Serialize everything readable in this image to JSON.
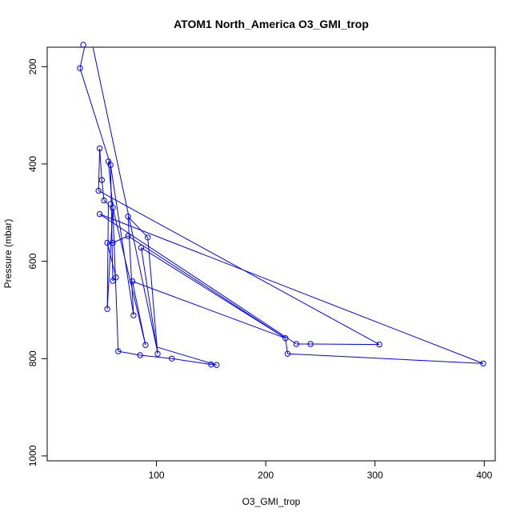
{
  "chart_data": {
    "type": "line",
    "title": "ATOM1 North_America O3_GMI_trop",
    "xlabel": "O3_GMI_trop",
    "ylabel": "Pressure (mbar)",
    "xlim": [
      0,
      410
    ],
    "ylim": [
      1010,
      160
    ],
    "y_reversed": true,
    "x_ticks": [
      100,
      200,
      300,
      400
    ],
    "y_ticks": [
      200,
      400,
      600,
      800,
      1000
    ],
    "grid": false,
    "legend": "none",
    "series_color": "#0000ff",
    "markers": "open-circle",
    "points": [
      {
        "x": 33,
        "y": 155
      },
      {
        "x": 30,
        "y": 203
      },
      {
        "x": 48,
        "y": 368
      },
      {
        "x": 56,
        "y": 395
      },
      {
        "x": 58,
        "y": 402
      },
      {
        "x": 47,
        "y": 455
      },
      {
        "x": 50,
        "y": 433
      },
      {
        "x": 52,
        "y": 475
      },
      {
        "x": 60,
        "y": 490
      },
      {
        "x": 48,
        "y": 503
      },
      {
        "x": 58,
        "y": 482
      },
      {
        "x": 74,
        "y": 508
      },
      {
        "x": 55,
        "y": 562
      },
      {
        "x": 60,
        "y": 562
      },
      {
        "x": 74,
        "y": 548
      },
      {
        "x": 92,
        "y": 551
      },
      {
        "x": 86,
        "y": 572
      },
      {
        "x": 60,
        "y": 640
      },
      {
        "x": 63,
        "y": 633
      },
      {
        "x": 78,
        "y": 641
      },
      {
        "x": 55,
        "y": 698
      },
      {
        "x": 79,
        "y": 711
      },
      {
        "x": 90,
        "y": 772
      },
      {
        "x": 101,
        "y": 790
      },
      {
        "x": 65,
        "y": 785
      },
      {
        "x": 85,
        "y": 793
      },
      {
        "x": 114,
        "y": 800
      },
      {
        "x": 150,
        "y": 812
      },
      {
        "x": 155,
        "y": 813
      },
      {
        "x": 218,
        "y": 758
      },
      {
        "x": 228,
        "y": 770
      },
      {
        "x": 241,
        "y": 770
      },
      {
        "x": 220,
        "y": 790
      },
      {
        "x": 304,
        "y": 771
      },
      {
        "x": 399,
        "y": 810
      }
    ],
    "path": [
      {
        "x": 36,
        "y": 140
      },
      {
        "x": 30,
        "y": 203
      },
      {
        "x": 58,
        "y": 402
      },
      {
        "x": 56,
        "y": 395
      },
      {
        "x": 60,
        "y": 490
      },
      {
        "x": 55,
        "y": 698
      },
      {
        "x": 56,
        "y": 482
      },
      {
        "x": 52,
        "y": 475
      },
      {
        "x": 50,
        "y": 433
      },
      {
        "x": 48,
        "y": 368
      },
      {
        "x": 47,
        "y": 455
      },
      {
        "x": 304,
        "y": 771
      },
      {
        "x": 241,
        "y": 770
      },
      {
        "x": 228,
        "y": 770
      },
      {
        "x": 48,
        "y": 503
      },
      {
        "x": 399,
        "y": 810
      },
      {
        "x": 220,
        "y": 790
      },
      {
        "x": 218,
        "y": 758
      },
      {
        "x": 74,
        "y": 548
      },
      {
        "x": 60,
        "y": 562
      },
      {
        "x": 55,
        "y": 562
      },
      {
        "x": 63,
        "y": 633
      },
      {
        "x": 60,
        "y": 640
      },
      {
        "x": 58,
        "y": 402
      },
      {
        "x": 79,
        "y": 711
      },
      {
        "x": 74,
        "y": 508
      },
      {
        "x": 92,
        "y": 551
      },
      {
        "x": 101,
        "y": 790
      },
      {
        "x": 86,
        "y": 572
      },
      {
        "x": 218,
        "y": 758
      },
      {
        "x": 78,
        "y": 641
      },
      {
        "x": 90,
        "y": 772
      },
      {
        "x": 60,
        "y": 490
      },
      {
        "x": 65,
        "y": 785
      },
      {
        "x": 85,
        "y": 793
      },
      {
        "x": 114,
        "y": 800
      },
      {
        "x": 150,
        "y": 812
      },
      {
        "x": 155,
        "y": 813
      },
      {
        "x": 100,
        "y": 776
      },
      {
        "x": 40,
        "y": 140
      }
    ]
  }
}
